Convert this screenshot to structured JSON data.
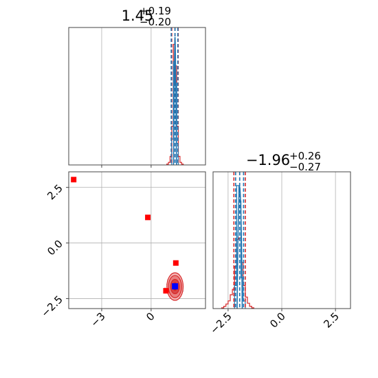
{
  "colors": {
    "hist_primary": "#d62728",
    "hist_secondary": "#1f77b4",
    "marker_red": "#ff0000",
    "marker_blue": "#0000ff",
    "grid": "#b0b0b0",
    "axis": "#444444"
  },
  "chart_data": [
    {
      "type": "histogram",
      "panel": "top-left",
      "title": {
        "value": "1.45",
        "upper": "+0.19",
        "lower": "−0.20"
      },
      "xlim": [
        -5.0,
        3.3
      ],
      "xticks": [
        -3,
        0
      ],
      "xtick_labels_visible": false,
      "yticks_visible": false,
      "grid": true,
      "quantile_lines": [
        1.25,
        1.45,
        1.64
      ],
      "histogram_lines": [
        1.22,
        1.45,
        1.62
      ],
      "series": [
        {
          "color": "red",
          "bins": [
            0.95,
            1.05,
            1.15,
            1.25,
            1.35,
            1.45,
            1.55,
            1.65,
            1.75,
            1.85,
            1.95
          ],
          "counts": [
            1,
            3,
            10,
            45,
            140,
            115,
            45,
            10,
            3,
            1
          ]
        },
        {
          "color": "blue",
          "bins": [
            1.25,
            1.35,
            1.45,
            1.55,
            1.65
          ],
          "counts": [
            30,
            120,
            95,
            25
          ]
        }
      ]
    },
    {
      "type": "scatter",
      "panel": "bottom-left",
      "xlim": [
        -5.0,
        3.3
      ],
      "ylim": [
        -2.95,
        3.2
      ],
      "xticks": [
        -3,
        0
      ],
      "yticks": [
        -2.5,
        0.0,
        2.5
      ],
      "xtick_labels": [
        "−3",
        "0"
      ],
      "ytick_labels": [
        "−2.5",
        "0.0",
        "2.5"
      ],
      "grid": true,
      "points_red": [
        {
          "x": -4.7,
          "y": 2.85
        },
        {
          "x": -0.2,
          "y": 1.15
        },
        {
          "x": 1.5,
          "y": -0.9
        },
        {
          "x": 0.9,
          "y": -2.15
        },
        {
          "x": 1.45,
          "y": -1.95
        }
      ],
      "points_blue": [
        {
          "x": 1.45,
          "y": -1.95
        }
      ],
      "contour_center": {
        "x": 1.45,
        "y": -1.96
      },
      "contour_sigmas": {
        "x": 0.19,
        "y": 0.27
      }
    },
    {
      "type": "histogram",
      "panel": "bottom-right",
      "title": {
        "value": "−1.96",
        "upper": "+0.26",
        "lower": "−0.27"
      },
      "xlim": [
        -3.2,
        3.2
      ],
      "xticks": [
        -2.5,
        0.0,
        2.5
      ],
      "xtick_labels": [
        "−2.5",
        "0.0",
        "2.5"
      ],
      "yticks_visible": false,
      "grid": true,
      "quantile_lines": [
        -2.23,
        -1.96,
        -1.7
      ],
      "histogram_lines": [
        -2.15,
        -1.96,
        -1.78
      ],
      "series": [
        {
          "color": "red",
          "bins": [
            -2.8,
            -2.7,
            -2.6,
            -2.5,
            -2.4,
            -2.3,
            -2.2,
            -2.1,
            -2.0,
            -1.9,
            -1.8,
            -1.7,
            -1.6,
            -1.5,
            -1.4,
            -1.3
          ],
          "counts": [
            1,
            3,
            6,
            10,
            18,
            25,
            55,
            90,
            92,
            60,
            30,
            15,
            7,
            3,
            1
          ]
        },
        {
          "color": "blue",
          "bins": [
            -2.2,
            -2.1,
            -2.0,
            -1.9,
            -1.8,
            -1.7
          ],
          "counts": [
            30,
            160,
            140,
            40,
            10
          ]
        }
      ]
    }
  ]
}
